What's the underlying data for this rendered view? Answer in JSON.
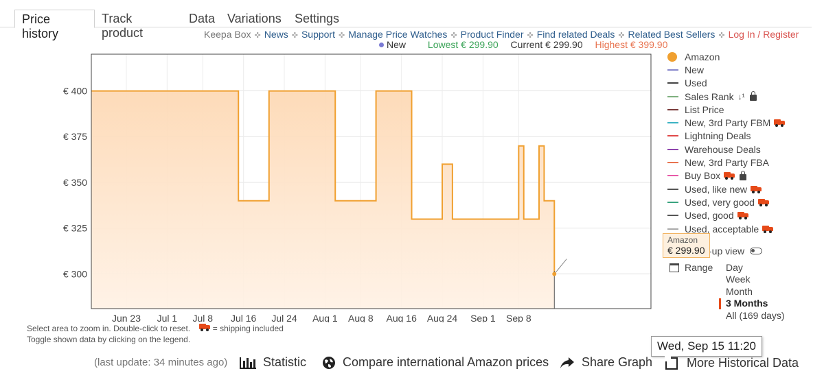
{
  "tabs": [
    {
      "label": "Price history",
      "active": true
    },
    {
      "label": "Track product",
      "active": false
    },
    {
      "label": "Data",
      "active": false
    },
    {
      "label": "Variations",
      "active": false
    },
    {
      "label": "Settings",
      "active": false
    }
  ],
  "links": {
    "keepa_box": "Keepa Box",
    "news": "News",
    "support": "Support",
    "manage_price_watches": "Manage Price Watches",
    "product_finder": "Product Finder",
    "find_related_deals": "Find related Deals",
    "related_best_sellers": "Related Best Sellers",
    "login_register": "Log In / Register"
  },
  "stats": {
    "new_label": "New",
    "lowest": "Lowest € 299.90",
    "current": "Current € 299.90",
    "highest": "Highest € 399.90",
    "new_color": "#7a7ad4",
    "lowest_color": "#3aa357",
    "highest_color": "#e8734f"
  },
  "chart_data": {
    "type": "line",
    "series": [
      {
        "name": "Amazon",
        "color": "#f0a030",
        "step": true,
        "points": [
          [
            "Jun 18",
            399.9
          ],
          [
            "Jul 15",
            339.9
          ],
          [
            "Jul 21",
            399.9
          ],
          [
            "Aug 3",
            349.9
          ],
          [
            "Aug 3",
            339.9
          ],
          [
            "Aug 11",
            399.9
          ],
          [
            "Aug 18",
            329.9
          ],
          [
            "Aug 24",
            359.9
          ],
          [
            "Aug 26",
            329.9
          ],
          [
            "Sep 8",
            369.9
          ],
          [
            "Sep 9",
            329.9
          ],
          [
            "Sep 12",
            369.9
          ],
          [
            "Sep 13",
            339.9
          ],
          [
            "Sep 15",
            299.9
          ]
        ]
      }
    ],
    "x_ticks": [
      "Jun 23",
      "Jul 1",
      "Jul 8",
      "Jul 16",
      "Jul 24",
      "Aug 1",
      "Aug 8",
      "Aug 16",
      "Aug 24",
      "Sep 1",
      "Sep 8"
    ],
    "y_ticks": [
      "€ 300",
      "€ 325",
      "€ 350",
      "€ 375",
      "€ 400"
    ],
    "y_tick_values": [
      300,
      325,
      350,
      375,
      400
    ],
    "ylim": [
      281,
      420
    ],
    "grid": true
  },
  "legend": {
    "items": [
      {
        "label": "Amazon",
        "color": "#f0a030",
        "style": "dot",
        "truck": false,
        "lock": false,
        "sort": false
      },
      {
        "label": "New",
        "color": "#8888cc",
        "style": "line",
        "truck": false,
        "lock": false,
        "sort": false
      },
      {
        "label": "Used",
        "color": "#444444",
        "style": "line",
        "truck": false,
        "lock": false,
        "sort": false
      },
      {
        "label": "Sales Rank",
        "color": "#7fb07f",
        "style": "line",
        "truck": false,
        "lock": true,
        "sort": true
      },
      {
        "label": "List Price",
        "color": "#7a3a3a",
        "style": "line",
        "truck": false,
        "lock": false,
        "sort": false
      },
      {
        "label": "New, 3rd Party FBM",
        "color": "#3bb3c3",
        "style": "line",
        "truck": true,
        "lock": false,
        "sort": false
      },
      {
        "label": "Lightning Deals",
        "color": "#e04848",
        "style": "line",
        "truck": false,
        "lock": false,
        "sort": false
      },
      {
        "label": "Warehouse Deals",
        "color": "#8e44ad",
        "style": "line",
        "truck": false,
        "lock": false,
        "sort": false
      },
      {
        "label": "New, 3rd Party FBA",
        "color": "#e8734f",
        "style": "line",
        "truck": false,
        "lock": false,
        "sort": false
      },
      {
        "label": "Buy Box",
        "color": "#e75aa8",
        "style": "line",
        "truck": true,
        "lock": true,
        "sort": false
      },
      {
        "label": "Used, like new",
        "color": "#555555",
        "style": "line",
        "truck": true,
        "lock": false,
        "sort": false
      },
      {
        "label": "Used, very good",
        "color": "#3aa37f",
        "style": "line",
        "truck": true,
        "lock": false,
        "sort": false
      },
      {
        "label": "Used, good",
        "color": "#555555",
        "style": "line",
        "truck": true,
        "lock": false,
        "sort": false
      },
      {
        "label": "Used, acceptable",
        "color": "#aaaaaa",
        "style": "line",
        "truck": true,
        "lock": false,
        "sort": false
      }
    ],
    "closeup_label": "-up view",
    "range_label": "Range",
    "range_options": [
      {
        "label": "Day",
        "selected": false
      },
      {
        "label": "Week",
        "selected": false
      },
      {
        "label": "Month",
        "selected": false
      },
      {
        "label": "3 Months",
        "selected": true
      },
      {
        "label": "All (169 days)",
        "selected": false
      }
    ]
  },
  "tooltip": {
    "series": "Amazon",
    "value": "€ 299.90",
    "date": "Wed, Sep 15 11:20"
  },
  "help": {
    "line1": "Select area to zoom in. Double-click to reset.",
    "shipping_note": "= shipping included",
    "line2": "Toggle shown data by clicking on the legend."
  },
  "footer": {
    "last_update": "(last update: 34 minutes ago)",
    "statistic": "Statistic",
    "compare": "Compare international Amazon prices",
    "share": "Share Graph",
    "more_history": "More Historical Data"
  }
}
